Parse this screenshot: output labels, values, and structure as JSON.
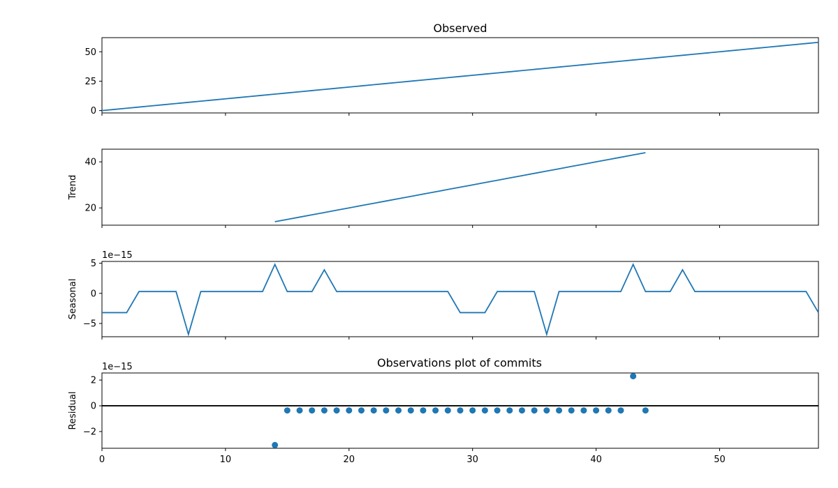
{
  "figure_title": "Observations plot of commits",
  "chart_data": [
    {
      "type": "line",
      "title": "Observed",
      "ylabel": "",
      "offset_text": "",
      "xlim": [
        0,
        58
      ],
      "ylim": [
        -2,
        62
      ],
      "yticks": [
        0,
        25,
        50
      ],
      "ytick_labels": [
        "0",
        "25",
        "50"
      ],
      "show_xtick_labels": false,
      "series": [
        {
          "x": [
            0,
            1,
            2,
            3,
            4,
            5,
            6,
            7,
            8,
            9,
            10,
            11,
            12,
            13,
            14,
            15,
            16,
            17,
            18,
            19,
            20,
            21,
            22,
            23,
            24,
            25,
            26,
            27,
            28,
            29,
            30,
            31,
            32,
            33,
            34,
            35,
            36,
            37,
            38,
            39,
            40,
            41,
            42,
            43,
            44,
            45,
            46,
            47,
            48,
            49,
            50,
            51,
            52,
            53,
            54,
            55,
            56,
            57,
            58
          ],
          "values": [
            0,
            1,
            2,
            3,
            4,
            5,
            6,
            7,
            8,
            9,
            10,
            11,
            12,
            13,
            14,
            15,
            16,
            17,
            18,
            19,
            20,
            21,
            22,
            23,
            24,
            25,
            26,
            27,
            28,
            29,
            30,
            31,
            32,
            33,
            34,
            35,
            36,
            37,
            38,
            39,
            40,
            41,
            42,
            43,
            44,
            45,
            46,
            47,
            48,
            49,
            50,
            51,
            52,
            53,
            54,
            55,
            56,
            57,
            58
          ]
        }
      ]
    },
    {
      "type": "line",
      "title": "",
      "ylabel": "Trend",
      "offset_text": "",
      "xlim": [
        0,
        58
      ],
      "ylim": [
        12.5,
        45.5
      ],
      "yticks": [
        20,
        40
      ],
      "ytick_labels": [
        "20",
        "40"
      ],
      "show_xtick_labels": false,
      "series": [
        {
          "x": [
            14,
            15,
            16,
            17,
            18,
            19,
            20,
            21,
            22,
            23,
            24,
            25,
            26,
            27,
            28,
            29,
            30,
            31,
            32,
            33,
            34,
            35,
            36,
            37,
            38,
            39,
            40,
            41,
            42,
            43,
            44
          ],
          "values": [
            14,
            15,
            16,
            17,
            18,
            19,
            20,
            21,
            22,
            23,
            24,
            25,
            26,
            27,
            28,
            29,
            30,
            31,
            32,
            33,
            34,
            35,
            36,
            37,
            38,
            39,
            40,
            41,
            42,
            43,
            44
          ]
        }
      ]
    },
    {
      "type": "line",
      "title": "",
      "ylabel": "Seasonal",
      "offset_text": "1e−15",
      "xlim": [
        0,
        58
      ],
      "ylim": [
        -7.2,
        5.3
      ],
      "yticks": [
        -5,
        0,
        5
      ],
      "ytick_labels": [
        "−5",
        "0",
        "5"
      ],
      "show_xtick_labels": false,
      "series": [
        {
          "x": [
            0,
            1,
            2,
            3,
            4,
            5,
            6,
            7,
            8,
            9,
            10,
            11,
            12,
            13,
            14,
            15,
            16,
            17,
            18,
            19,
            20,
            21,
            22,
            23,
            24,
            25,
            26,
            27,
            28,
            29,
            30,
            31,
            32,
            33,
            34,
            35,
            36,
            37,
            38,
            39,
            40,
            41,
            42,
            43,
            44,
            45,
            46,
            47,
            48,
            49,
            50,
            51,
            52,
            53,
            54,
            55,
            56,
            57,
            58
          ],
          "values": [
            -3.2,
            -3.2,
            -3.2,
            0.3,
            0.3,
            0.3,
            0.3,
            -6.8,
            0.3,
            0.3,
            0.3,
            0.3,
            0.3,
            0.3,
            4.8,
            0.3,
            0.3,
            0.3,
            3.9,
            0.3,
            0.3,
            0.3,
            0.3,
            0.3,
            0.3,
            0.3,
            0.3,
            0.3,
            0.3,
            -3.2,
            -3.2,
            -3.2,
            0.3,
            0.3,
            0.3,
            0.3,
            -6.8,
            0.3,
            0.3,
            0.3,
            0.3,
            0.3,
            0.3,
            4.8,
            0.3,
            0.3,
            0.3,
            3.9,
            0.3,
            0.3,
            0.3,
            0.3,
            0.3,
            0.3,
            0.3,
            0.3,
            0.3,
            0.3,
            -3.2
          ]
        }
      ]
    },
    {
      "type": "scatter",
      "title": "",
      "ylabel": "Residual",
      "offset_text": "1e−15",
      "xlim": [
        0,
        58
      ],
      "ylim": [
        -3.3,
        2.55
      ],
      "yticks": [
        -2,
        0,
        2
      ],
      "ytick_labels": [
        "−2",
        "0",
        "2"
      ],
      "show_xtick_labels": true,
      "xticks": [
        0,
        10,
        20,
        30,
        40,
        50
      ],
      "xtick_labels": [
        "0",
        "10",
        "20",
        "30",
        "40",
        "50"
      ],
      "zero_line": true,
      "series": [
        {
          "x": [
            14,
            15,
            16,
            17,
            18,
            19,
            20,
            21,
            22,
            23,
            24,
            25,
            26,
            27,
            28,
            29,
            30,
            31,
            32,
            33,
            34,
            35,
            36,
            37,
            38,
            39,
            40,
            41,
            42,
            43,
            44
          ],
          "values": [
            -3.05,
            -0.36,
            -0.36,
            -0.36,
            -0.36,
            -0.36,
            -0.36,
            -0.36,
            -0.36,
            -0.36,
            -0.36,
            -0.36,
            -0.36,
            -0.36,
            -0.36,
            -0.36,
            -0.36,
            -0.36,
            -0.36,
            -0.36,
            -0.36,
            -0.36,
            -0.36,
            -0.36,
            -0.36,
            -0.36,
            -0.36,
            -0.36,
            -0.36,
            2.3,
            -0.36
          ]
        }
      ]
    }
  ]
}
